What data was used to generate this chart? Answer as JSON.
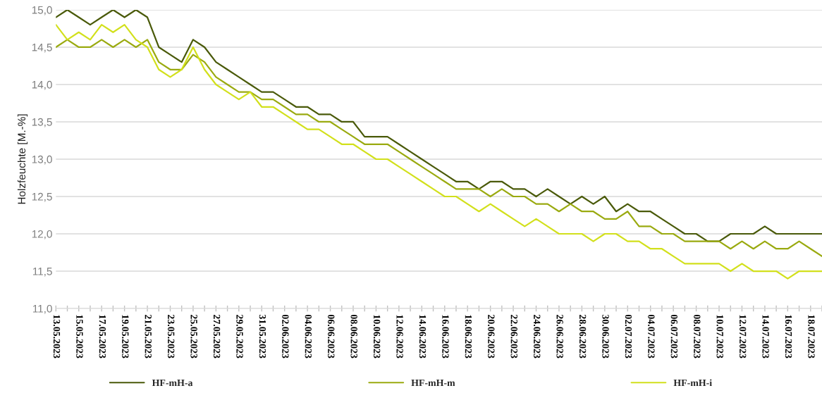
{
  "chart_data": {
    "type": "line",
    "ylabel": "Holzfeuchte [M.-%]",
    "x": [
      "2023-05-13",
      "2023-05-14",
      "2023-05-15",
      "2023-05-16",
      "2023-05-17",
      "2023-05-18",
      "2023-05-19",
      "2023-05-20",
      "2023-05-21",
      "2023-05-22",
      "2023-05-23",
      "2023-05-24",
      "2023-05-25",
      "2023-05-26",
      "2023-05-27",
      "2023-05-28",
      "2023-05-29",
      "2023-05-30",
      "2023-05-31",
      "2023-06-01",
      "2023-06-02",
      "2023-06-03",
      "2023-06-04",
      "2023-06-05",
      "2023-06-06",
      "2023-06-07",
      "2023-06-08",
      "2023-06-09",
      "2023-06-10",
      "2023-06-11",
      "2023-06-12",
      "2023-06-13",
      "2023-06-14",
      "2023-06-15",
      "2023-06-16",
      "2023-06-17",
      "2023-06-18",
      "2023-06-19",
      "2023-06-20",
      "2023-06-21",
      "2023-06-22",
      "2023-06-23",
      "2023-06-24",
      "2023-06-25",
      "2023-06-26",
      "2023-06-27",
      "2023-06-28",
      "2023-06-29",
      "2023-06-30",
      "2023-07-01",
      "2023-07-02",
      "2023-07-03",
      "2023-07-04",
      "2023-07-05",
      "2023-07-06",
      "2023-07-07",
      "2023-07-08",
      "2023-07-09",
      "2023-07-10",
      "2023-07-11",
      "2023-07-12",
      "2023-07-13",
      "2023-07-14",
      "2023-07-15",
      "2023-07-16",
      "2023-07-17",
      "2023-07-18",
      "2023-07-19"
    ],
    "series": [
      {
        "name": "HF-mH-a",
        "color": "#4a5a0a",
        "values": [
          14.9,
          15.0,
          14.9,
          14.8,
          14.9,
          15.0,
          14.9,
          15.0,
          14.9,
          14.5,
          14.4,
          14.3,
          14.6,
          14.5,
          14.3,
          14.2,
          14.1,
          14.0,
          13.9,
          13.9,
          13.8,
          13.7,
          13.7,
          13.6,
          13.6,
          13.5,
          13.5,
          13.3,
          13.3,
          13.3,
          13.2,
          13.1,
          13.0,
          12.9,
          12.8,
          12.7,
          12.7,
          12.6,
          12.7,
          12.7,
          12.6,
          12.6,
          12.5,
          12.6,
          12.5,
          12.4,
          12.5,
          12.4,
          12.5,
          12.3,
          12.4,
          12.3,
          12.3,
          12.2,
          12.1,
          12.0,
          12.0,
          11.9,
          11.9,
          12.0,
          12.0,
          12.0,
          12.1,
          12.0,
          12.0,
          12.0,
          12.0,
          12.0
        ]
      },
      {
        "name": "HF-mH-m",
        "color": "#9aaa10",
        "values": [
          14.5,
          14.6,
          14.5,
          14.5,
          14.6,
          14.5,
          14.6,
          14.5,
          14.6,
          14.3,
          14.2,
          14.2,
          14.4,
          14.3,
          14.1,
          14.0,
          13.9,
          13.9,
          13.8,
          13.8,
          13.7,
          13.6,
          13.6,
          13.5,
          13.5,
          13.4,
          13.3,
          13.2,
          13.2,
          13.2,
          13.1,
          13.0,
          12.9,
          12.8,
          12.7,
          12.6,
          12.6,
          12.6,
          12.5,
          12.6,
          12.5,
          12.5,
          12.4,
          12.4,
          12.3,
          12.4,
          12.3,
          12.3,
          12.2,
          12.2,
          12.3,
          12.1,
          12.1,
          12.0,
          12.0,
          11.9,
          11.9,
          11.9,
          11.9,
          11.8,
          11.9,
          11.8,
          11.9,
          11.8,
          11.8,
          11.9,
          11.8,
          11.7
        ]
      },
      {
        "name": "HF-mH-i",
        "color": "#d2e01c",
        "values": [
          14.8,
          14.6,
          14.7,
          14.6,
          14.8,
          14.7,
          14.8,
          14.6,
          14.5,
          14.2,
          14.1,
          14.2,
          14.5,
          14.2,
          14.0,
          13.9,
          13.8,
          13.9,
          13.7,
          13.7,
          13.6,
          13.5,
          13.4,
          13.4,
          13.3,
          13.2,
          13.2,
          13.1,
          13.0,
          13.0,
          12.9,
          12.8,
          12.7,
          12.6,
          12.5,
          12.5,
          12.4,
          12.3,
          12.4,
          12.3,
          12.2,
          12.1,
          12.2,
          12.1,
          12.0,
          12.0,
          12.0,
          11.9,
          12.0,
          12.0,
          11.9,
          11.9,
          11.8,
          11.8,
          11.7,
          11.6,
          11.6,
          11.6,
          11.6,
          11.5,
          11.6,
          11.5,
          11.5,
          11.5,
          11.4,
          11.5,
          11.5,
          11.5
        ]
      }
    ],
    "xlim": [
      "2023-05-13",
      "2023-07-19"
    ],
    "xticks": [
      {
        "value": "2023-05-13",
        "label": "13.05.2023"
      },
      {
        "value": "2023-05-14",
        "label": null
      },
      {
        "value": "2023-05-15",
        "label": "15.05.2023"
      },
      {
        "value": "2023-05-16",
        "label": null
      },
      {
        "value": "2023-05-17",
        "label": "17.05.2023"
      },
      {
        "value": "2023-05-18",
        "label": null
      },
      {
        "value": "2023-05-19",
        "label": "19.05.2023"
      },
      {
        "value": "2023-05-20",
        "label": null
      },
      {
        "value": "2023-05-21",
        "label": "21.05.2023"
      },
      {
        "value": "2023-05-22",
        "label": null
      },
      {
        "value": "2023-05-23",
        "label": "23.05.2023"
      },
      {
        "value": "2023-05-24",
        "label": null
      },
      {
        "value": "2023-05-25",
        "label": "25.05.2023"
      },
      {
        "value": "2023-05-26",
        "label": null
      },
      {
        "value": "2023-05-27",
        "label": "27.05.2023"
      },
      {
        "value": "2023-05-28",
        "label": null
      },
      {
        "value": "2023-05-29",
        "label": "29.05.2023"
      },
      {
        "value": "2023-05-30",
        "label": null
      },
      {
        "value": "2023-05-31",
        "label": "31.05.2023"
      },
      {
        "value": "2023-06-01",
        "label": null
      },
      {
        "value": "2023-06-02",
        "label": "02.06.2023"
      },
      {
        "value": "2023-06-03",
        "label": null
      },
      {
        "value": "2023-06-04",
        "label": "04.06.2023"
      },
      {
        "value": "2023-06-05",
        "label": null
      },
      {
        "value": "2023-06-06",
        "label": "06.06.2023"
      },
      {
        "value": "2023-06-07",
        "label": null
      },
      {
        "value": "2023-06-08",
        "label": "08.06.2023"
      },
      {
        "value": "2023-06-09",
        "label": null
      },
      {
        "value": "2023-06-10",
        "label": "10.06.2023"
      },
      {
        "value": "2023-06-11",
        "label": null
      },
      {
        "value": "2023-06-12",
        "label": "12.06.2023"
      },
      {
        "value": "2023-06-13",
        "label": null
      },
      {
        "value": "2023-06-14",
        "label": "14.06.2023"
      },
      {
        "value": "2023-06-15",
        "label": null
      },
      {
        "value": "2023-06-16",
        "label": "16.06.2023"
      },
      {
        "value": "2023-06-17",
        "label": null
      },
      {
        "value": "2023-06-18",
        "label": "18.06.2023"
      },
      {
        "value": "2023-06-19",
        "label": null
      },
      {
        "value": "2023-06-20",
        "label": "20.06.2023"
      },
      {
        "value": "2023-06-21",
        "label": null
      },
      {
        "value": "2023-06-22",
        "label": "22.06.2023"
      },
      {
        "value": "2023-06-23",
        "label": null
      },
      {
        "value": "2023-06-24",
        "label": "24.06.2023"
      },
      {
        "value": "2023-06-25",
        "label": null
      },
      {
        "value": "2023-06-26",
        "label": "26.06.2023"
      },
      {
        "value": "2023-06-27",
        "label": null
      },
      {
        "value": "2023-06-28",
        "label": "28.06.2023"
      },
      {
        "value": "2023-06-29",
        "label": null
      },
      {
        "value": "2023-06-30",
        "label": "30.06.2023"
      },
      {
        "value": "2023-07-01",
        "label": null
      },
      {
        "value": "2023-07-02",
        "label": "02.07.2023"
      },
      {
        "value": "2023-07-03",
        "label": null
      },
      {
        "value": "2023-07-04",
        "label": "04.07.2023"
      },
      {
        "value": "2023-07-05",
        "label": null
      },
      {
        "value": "2023-07-06",
        "label": "06.07.2023"
      },
      {
        "value": "2023-07-07",
        "label": null
      },
      {
        "value": "2023-07-08",
        "label": "08.07.2023"
      },
      {
        "value": "2023-07-09",
        "label": null
      },
      {
        "value": "2023-07-10",
        "label": "10.07.2023"
      },
      {
        "value": "2023-07-11",
        "label": null
      },
      {
        "value": "2023-07-12",
        "label": "12.07.2023"
      },
      {
        "value": "2023-07-13",
        "label": null
      },
      {
        "value": "2023-07-14",
        "label": "14.07.2023"
      },
      {
        "value": "2023-07-15",
        "label": null
      },
      {
        "value": "2023-07-16",
        "label": "16.07.2023"
      },
      {
        "value": "2023-07-17",
        "label": null
      },
      {
        "value": "2023-07-18",
        "label": "18.07.2023"
      },
      {
        "value": "2023-07-19",
        "label": null
      }
    ],
    "ylim": [
      11,
      15
    ],
    "yticks": [
      {
        "value": 11,
        "label": "11,0"
      },
      {
        "value": 11.5,
        "label": "11,5"
      },
      {
        "value": 12,
        "label": "12,0"
      },
      {
        "value": 12.5,
        "label": "12,5"
      },
      {
        "value": 13,
        "label": "13,0"
      },
      {
        "value": 13.5,
        "label": "13,5"
      },
      {
        "value": 14,
        "label": "14,0"
      },
      {
        "value": 14.5,
        "label": "14,5"
      },
      {
        "value": 15,
        "label": "15,0"
      }
    ],
    "grid": "y",
    "legend": "bottom",
    "marker": "none",
    "line_style": "solid"
  }
}
